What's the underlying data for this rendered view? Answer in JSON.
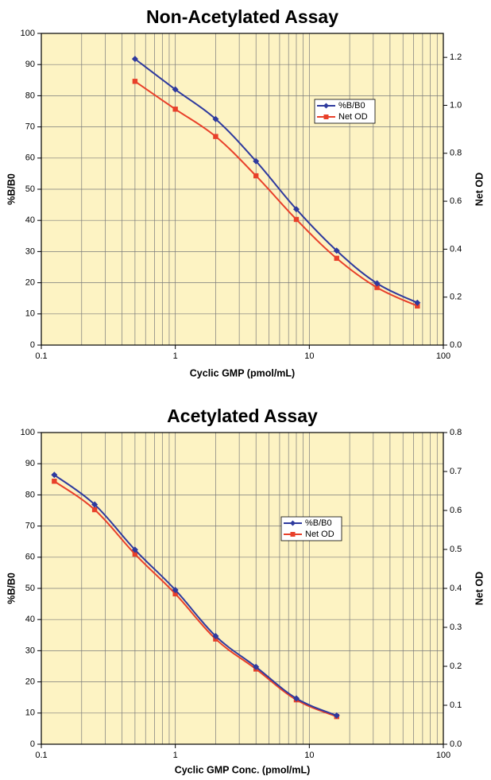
{
  "chart_data": [
    {
      "type": "line",
      "title": "Non-Acetylated Assay",
      "xlabel": "Cyclic GMP (pmol/mL)",
      "ylabel": "%B/B0",
      "y2label": "Net OD",
      "xscale": "log",
      "xlim": [
        0.1,
        100
      ],
      "ylim": [
        0,
        100
      ],
      "y2lim": [
        0.0,
        1.3
      ],
      "x_ticks": [
        "0.1",
        "1",
        "10",
        "100"
      ],
      "y_ticks": [
        "0",
        "10",
        "20",
        "30",
        "40",
        "50",
        "60",
        "70",
        "80",
        "90",
        "100"
      ],
      "y2_ticks": [
        "0.0",
        "0.2",
        "0.4",
        "0.6",
        "0.8",
        "1.0",
        "1.2"
      ],
      "grid": true,
      "legend_position": "right-center",
      "colors": {
        "background": "#fdf3c3",
        "grid": "#7a7a7a",
        "series1": "#2e3a9e",
        "series2": "#e8402a"
      },
      "series": [
        {
          "name": "%B/B0",
          "axis": "left",
          "marker": "diamond",
          "x": [
            0.5,
            1,
            2,
            4,
            8,
            16,
            32,
            64
          ],
          "y": [
            91.8,
            82.0,
            72.5,
            59.0,
            43.6,
            30.3,
            19.8,
            13.6
          ]
        },
        {
          "name": "Net OD",
          "axis": "right",
          "marker": "square",
          "x": [
            0.5,
            1,
            2,
            4,
            8,
            16,
            32,
            64
          ],
          "y": [
            1.1,
            0.984,
            0.87,
            0.706,
            0.524,
            0.362,
            0.24,
            0.163
          ]
        }
      ]
    },
    {
      "type": "line",
      "title": "Acetylated Assay",
      "xlabel": "Cyclic GMP Conc. (pmol/mL)",
      "ylabel": "%B/B0",
      "y2label": "Net OD",
      "xscale": "log",
      "xlim": [
        0.1,
        100
      ],
      "ylim": [
        0,
        100
      ],
      "y2lim": [
        0.0,
        0.8
      ],
      "x_ticks": [
        "0.1",
        "1",
        "10",
        "100"
      ],
      "y_ticks": [
        "0",
        "10",
        "20",
        "30",
        "40",
        "50",
        "60",
        "70",
        "80",
        "90",
        "100"
      ],
      "y2_ticks": [
        "0.0",
        "0.1",
        "0.2",
        "0.3",
        "0.4",
        "0.5",
        "0.6",
        "0.7",
        "0.8"
      ],
      "grid": true,
      "legend_position": "center-right",
      "colors": {
        "background": "#fdf3c3",
        "grid": "#7a7a7a",
        "series1": "#2e3a9e",
        "series2": "#e8402a"
      },
      "series": [
        {
          "name": "%B/B0",
          "axis": "left",
          "marker": "diamond",
          "x": [
            0.125,
            0.25,
            0.5,
            1,
            2,
            4,
            8,
            16
          ],
          "y": [
            86.4,
            76.9,
            62.4,
            49.5,
            34.7,
            24.8,
            14.7,
            9.2
          ]
        },
        {
          "name": "Net OD",
          "axis": "right",
          "marker": "square",
          "x": [
            0.125,
            0.25,
            0.5,
            1,
            2,
            4,
            8,
            16
          ],
          "y": [
            0.675,
            0.602,
            0.488,
            0.386,
            0.27,
            0.193,
            0.114,
            0.071
          ]
        }
      ]
    }
  ]
}
